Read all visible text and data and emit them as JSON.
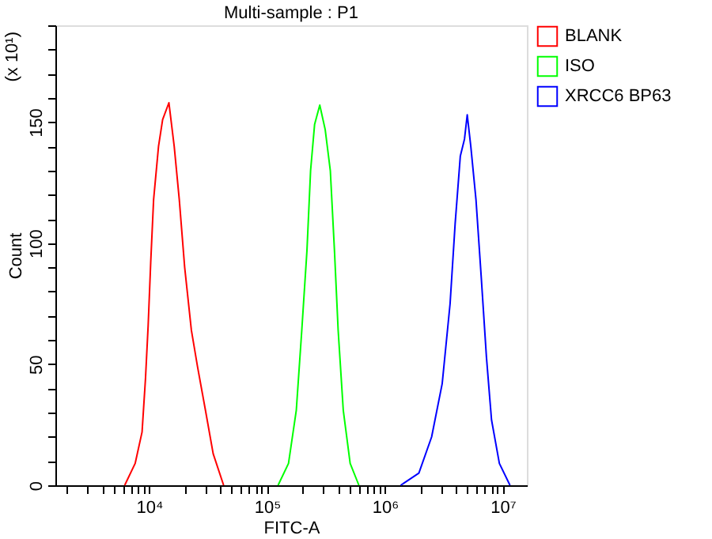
{
  "chart_data": {
    "type": "line",
    "title": "Multi-sample : P1",
    "xlabel": "FITC-A",
    "ylabel": "Count",
    "annotations": [
      "(x 10¹)"
    ],
    "log": "x",
    "grid": false,
    "legend": "right",
    "marker": "none",
    "line_style": "solid",
    "xlim": [
      1600,
      16000000
    ],
    "ylim": [
      0,
      190
    ],
    "xticks": [
      {
        "value": 2000,
        "label": null
      },
      {
        "value": 3000,
        "label": null
      },
      {
        "value": 4000,
        "label": null
      },
      {
        "value": 5000,
        "label": null
      },
      {
        "value": 6000,
        "label": null
      },
      {
        "value": 7000,
        "label": null
      },
      {
        "value": 8000,
        "label": null
      },
      {
        "value": 9000,
        "label": null
      },
      {
        "value": 10000,
        "label": "10⁴"
      },
      {
        "value": 20000,
        "label": null
      },
      {
        "value": 30000,
        "label": null
      },
      {
        "value": 40000,
        "label": null
      },
      {
        "value": 50000,
        "label": null
      },
      {
        "value": 60000,
        "label": null
      },
      {
        "value": 70000,
        "label": null
      },
      {
        "value": 80000,
        "label": null
      },
      {
        "value": 90000,
        "label": null
      },
      {
        "value": 100000,
        "label": "10⁵"
      },
      {
        "value": 200000,
        "label": null
      },
      {
        "value": 300000,
        "label": null
      },
      {
        "value": 400000,
        "label": null
      },
      {
        "value": 500000,
        "label": null
      },
      {
        "value": 600000,
        "label": null
      },
      {
        "value": 700000,
        "label": null
      },
      {
        "value": 800000,
        "label": null
      },
      {
        "value": 900000,
        "label": null
      },
      {
        "value": 1000000,
        "label": "10⁶"
      },
      {
        "value": 2000000,
        "label": null
      },
      {
        "value": 3000000,
        "label": null
      },
      {
        "value": 4000000,
        "label": null
      },
      {
        "value": 5000000,
        "label": null
      },
      {
        "value": 6000000,
        "label": null
      },
      {
        "value": 7000000,
        "label": null
      },
      {
        "value": 8000000,
        "label": null
      },
      {
        "value": 9000000,
        "label": null
      },
      {
        "value": 10000000,
        "label": "10⁷"
      }
    ],
    "yticks": [
      0,
      {
        "value": 10,
        "label": null
      },
      {
        "value": 20,
        "label": null
      },
      {
        "value": 30,
        "label": null
      },
      {
        "value": 40,
        "label": null
      },
      50,
      {
        "value": 60,
        "label": null
      },
      {
        "value": 70,
        "label": null
      },
      {
        "value": 80,
        "label": null
      },
      {
        "value": 90,
        "label": null
      },
      100,
      {
        "value": 110,
        "label": null
      },
      {
        "value": 120,
        "label": null
      },
      {
        "value": 130,
        "label": null
      },
      {
        "value": 140,
        "label": null
      },
      150,
      {
        "value": 160,
        "label": null
      },
      {
        "value": 170,
        "label": null
      },
      {
        "value": 180,
        "label": null
      },
      {
        "value": 190,
        "label": null
      }
    ],
    "series": [
      {
        "name": "BLANK",
        "color": "#ff0000",
        "x": [
          6200,
          7600,
          8700,
          9300,
          9800,
          10300,
          10900,
          12000,
          13000,
          14700,
          16300,
          18000,
          20000,
          22800,
          25700,
          30000,
          34900,
          42800
        ],
        "values": [
          0,
          9,
          22,
          44,
          66,
          92,
          118,
          140,
          151,
          158,
          140,
          118,
          90,
          64,
          49,
          31,
          13,
          0
        ]
      },
      {
        "name": "ISO",
        "color": "#00ff00",
        "x": [
          124000,
          152000,
          177000,
          197000,
          218000,
          234000,
          253000,
          280000,
          311000,
          344000,
          373000,
          401000,
          443000,
          507000,
          601000
        ],
        "values": [
          0,
          9,
          31,
          64,
          97,
          130,
          149,
          157,
          147,
          130,
          97,
          64,
          31,
          9,
          0
        ]
      },
      {
        "name": "XRCC6 BP63",
        "color": "#0000ff",
        "x": [
          1360000,
          1940000,
          2490000,
          3060000,
          3570000,
          3940000,
          4360000,
          4730000,
          4990000,
          5350000,
          5920000,
          6560000,
          7260000,
          8020000,
          9350000,
          11500000
        ],
        "values": [
          0,
          5,
          20,
          42,
          75,
          108,
          136,
          143,
          153,
          140,
          118,
          86,
          53,
          27,
          9,
          0
        ]
      }
    ]
  }
}
